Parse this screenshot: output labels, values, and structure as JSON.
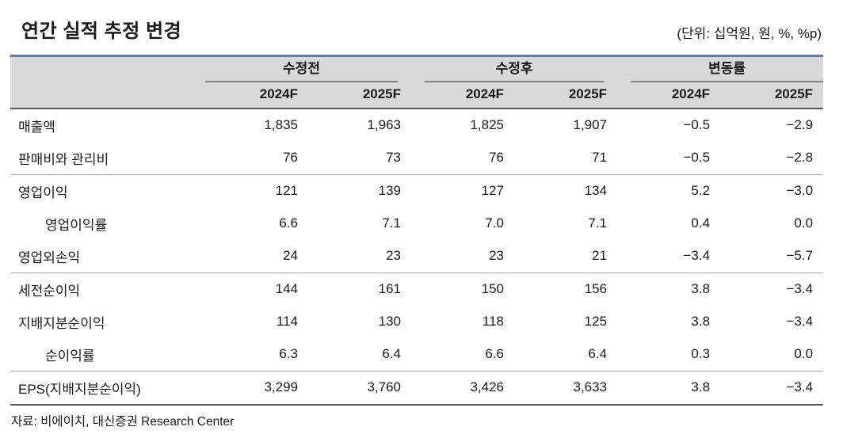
{
  "page": {
    "title": "연간 실적 추정 변경",
    "unit_note": "(단위: 십억원, 원, %, %p)",
    "source": "자료: 비에이치, 대신증권 Research Center"
  },
  "colors": {
    "table_top_accent": "#5b7cb1",
    "header_background": "#d9d9d9",
    "group_underline": "#7f7f7f",
    "heavy_rule": "#595959",
    "light_rule": "#a6a6a6",
    "text": "#1a1a1a"
  },
  "table": {
    "column_groups": [
      {
        "label": "수정전",
        "columns": [
          "2024F",
          "2025F"
        ]
      },
      {
        "label": "수정후",
        "columns": [
          "2024F",
          "2025F"
        ]
      },
      {
        "label": "변동률",
        "columns": [
          "2024F",
          "2025F"
        ]
      }
    ],
    "rows": [
      {
        "label": "매출액",
        "values": [
          "1,835",
          "1,963",
          "1,825",
          "1,907",
          "−0.5",
          "−2.9"
        ]
      },
      {
        "label": "판매비와 관리비",
        "values": [
          "76",
          "73",
          "76",
          "71",
          "−0.5",
          "−2.8"
        ]
      },
      {
        "label": "영업이익",
        "values": [
          "121",
          "139",
          "127",
          "134",
          "5.2",
          "−3.0"
        ]
      },
      {
        "label": "영업이익률",
        "values": [
          "6.6",
          "7.1",
          "7.0",
          "7.1",
          "0.4",
          "0.0"
        ]
      },
      {
        "label": "영업외손익",
        "values": [
          "24",
          "23",
          "23",
          "21",
          "−3.4",
          "−5.7"
        ]
      },
      {
        "label": "세전순이익",
        "values": [
          "144",
          "161",
          "150",
          "156",
          "3.8",
          "−3.4"
        ]
      },
      {
        "label": "지배지분순이익",
        "values": [
          "114",
          "130",
          "118",
          "125",
          "3.8",
          "−3.4"
        ]
      },
      {
        "label": "순이익률",
        "values": [
          "6.3",
          "6.4",
          "6.6",
          "6.4",
          "0.3",
          "0.0"
        ]
      },
      {
        "label": "EPS(지배지분순이익)",
        "values": [
          "3,299",
          "3,760",
          "3,426",
          "3,633",
          "3.8",
          "−3.4"
        ]
      }
    ]
  }
}
